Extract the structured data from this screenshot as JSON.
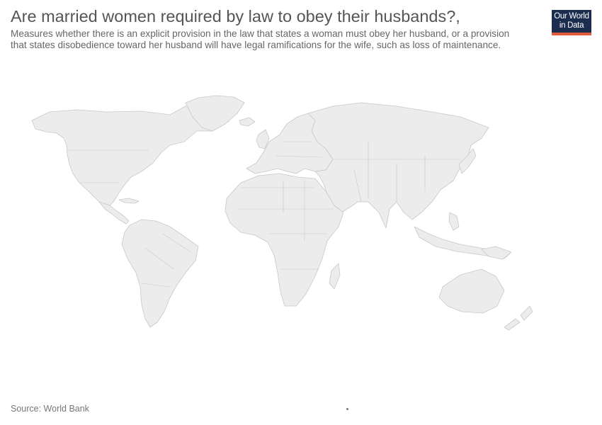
{
  "header": {
    "title": "Are married women required by law to obey their husbands?,",
    "subtitle_line1": "Measures whether there is an explicit provision in the law that states a woman must obey her husband, or a provision",
    "subtitle_line2": "that states disobedience toward her husband will have legal ramifications for the wife, such as loss of maintenance."
  },
  "logo": {
    "line1": "Our World",
    "line2": "in Data",
    "background_color": "#1b2c4f",
    "accent_color": "#e25c3b"
  },
  "map": {
    "land_color": "#ececec",
    "border_color": "#c8c8c8"
  },
  "footer": {
    "source": "Source: World Bank"
  }
}
